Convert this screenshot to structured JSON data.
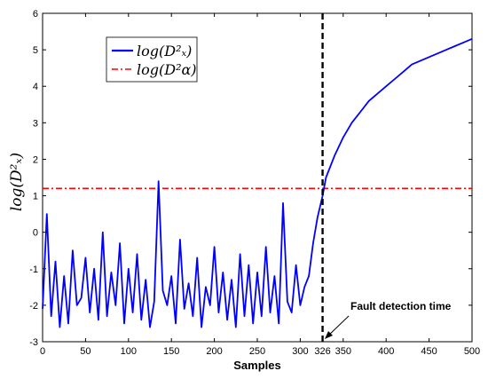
{
  "chart_data": {
    "type": "line",
    "xlabel": "Samples",
    "ylabel": "log(D²ₓ)",
    "xlim": [
      0,
      500
    ],
    "ylim": [
      -3,
      6
    ],
    "x_ticks": [
      "0",
      "50",
      "100",
      "150",
      "200",
      "250",
      "300",
      "326",
      "350",
      "400",
      "450",
      "500"
    ],
    "y_ticks": [
      "-3",
      "-2",
      "-1",
      "0",
      "1",
      "2",
      "3",
      "4",
      "5",
      "6"
    ],
    "grid": false,
    "legend_position": "top-left",
    "colors": {
      "statistic": "#0000ff",
      "threshold": "#ff0000",
      "fault_line": "#000000"
    },
    "series": [
      {
        "name": "log(D²ₓ)",
        "style": "solid",
        "x": [
          0,
          5,
          10,
          15,
          20,
          25,
          30,
          35,
          40,
          45,
          50,
          55,
          60,
          65,
          70,
          75,
          80,
          85,
          90,
          95,
          100,
          105,
          110,
          115,
          120,
          125,
          130,
          135,
          140,
          145,
          150,
          155,
          160,
          165,
          170,
          175,
          180,
          185,
          190,
          195,
          200,
          205,
          210,
          215,
          220,
          225,
          230,
          235,
          240,
          245,
          250,
          255,
          260,
          265,
          270,
          275,
          280,
          285,
          290,
          295,
          300,
          305,
          310,
          315,
          320,
          326,
          330,
          340,
          350,
          360,
          370,
          380,
          390,
          400,
          410,
          420,
          430,
          440,
          450,
          460,
          470,
          480,
          490,
          500
        ],
        "y": [
          -2.1,
          0.5,
          -2.3,
          -0.8,
          -2.6,
          -1.2,
          -2.5,
          -0.5,
          -2.0,
          -1.8,
          -0.7,
          -2.2,
          -1.0,
          -2.4,
          0.0,
          -2.3,
          -1.1,
          -2.0,
          -0.3,
          -2.5,
          -1.0,
          -2.2,
          -0.6,
          -2.4,
          -1.3,
          -2.6,
          -1.9,
          1.4,
          -1.6,
          -2.0,
          -1.2,
          -2.5,
          -0.2,
          -2.1,
          -1.4,
          -2.3,
          -0.7,
          -2.6,
          -1.5,
          -2.0,
          -0.4,
          -2.2,
          -1.1,
          -2.4,
          -1.3,
          -2.6,
          -0.6,
          -2.3,
          -0.9,
          -2.5,
          -1.1,
          -2.3,
          -0.4,
          -2.2,
          -1.2,
          -2.5,
          0.8,
          -1.9,
          -2.2,
          -0.9,
          -2.0,
          -1.5,
          -1.2,
          -0.3,
          0.4,
          1.0,
          1.5,
          2.1,
          2.6,
          3.0,
          3.3,
          3.6,
          3.8,
          4.0,
          4.2,
          4.4,
          4.6,
          4.7,
          4.8,
          4.9,
          5.0,
          5.1,
          5.2,
          5.3
        ]
      },
      {
        "name": "log(D²α)",
        "style": "dash-dot",
        "x": [
          0,
          500
        ],
        "y": [
          1.2,
          1.2
        ]
      }
    ],
    "legend": [
      "log(D²ₓ)",
      "log(D²α)"
    ],
    "fault_x": 326,
    "annotations": [
      {
        "text": "Fault detection time"
      }
    ]
  }
}
